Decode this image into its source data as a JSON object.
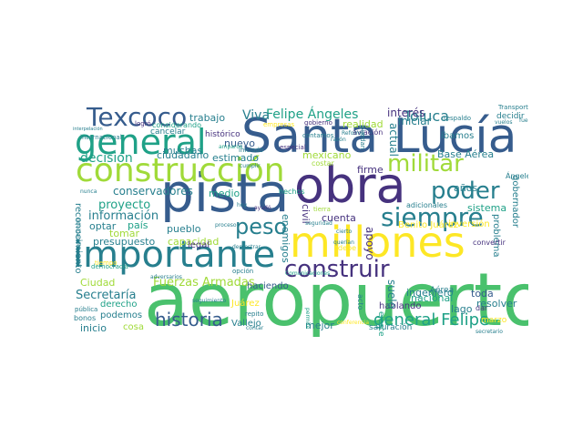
{
  "palette": {
    "dark_purple": "#46327e",
    "blue": "#365c8d",
    "teal_blue": "#277f8e",
    "teal": "#1fa187",
    "green": "#4ac16d",
    "light_green": "#a0da39",
    "yellow": "#fde725"
  },
  "words": {
    "aeropuerto": "aeropuerto",
    "santa_lucia": "Santa Lucía",
    "pista": "pista",
    "obra": "obra",
    "construccion": "construcción",
    "millones": "millones",
    "importante": "importante",
    "general": "general",
    "texcoco": "Texcoco",
    "militar": "militar",
    "poder": "poder",
    "siempre": "siempre",
    "peso": "peso",
    "construir": "construir",
    "historia": "historia",
    "general_felipe": "general Felipe",
    "felipe_angeles": "Felipe Ángeles",
    "viva": "Viva",
    "toluca": "Toluca",
    "interes": "interés",
    "iniciar": "iniciar",
    "realidad": "realidad",
    "actual": "actual",
    "ibamos": "íbamos",
    "base_aerea": "Base Aérea",
    "decision": "decisión",
    "ciudadano": "ciudadano",
    "conservadores": "conservadores",
    "proyecto": "proyecto",
    "informacion": "información",
    "pais": "país",
    "optar": "optar",
    "tomar": "tomar",
    "presupuesto": "presupuesto",
    "capacidad": "capacidad",
    "fuerzas_armadas": "Fuerzas Armadas",
    "secretaria": "Secretaría",
    "ciudad": "Ciudad",
    "derecho": "derecho",
    "podemos": "podemos",
    "inicio": "inicio",
    "cosa": "cosa",
    "vallejo": "Vallejo",
    "mejor": "mejor",
    "haciendo": "haciendo",
    "ingeniero": "ingeniero",
    "nacional": "nacional",
    "toda": "toda",
    "resolver": "resolver",
    "lago": "lago",
    "hablando": "hablando",
    "sistema": "sistema",
    "cuenta": "cuenta",
    "apoyo": "apoyo",
    "legal": "legal",
    "pueblo": "pueblo",
    "medio": "medio",
    "estimado": "estimado",
    "trabajo": "trabajo",
    "muchas": "muchas",
    "historico": "histórico",
    "nuevo": "nuevo",
    "hechos": "hechos",
    "civil": "civil",
    "enemigos": "enemigos",
    "firme": "firme",
    "anos": "años",
    "problema": "problema",
    "gobernador": "gobernador",
    "suelo": "suelo",
    "reconocimiento": "reconocimiento",
    "mexicano": "mexicano",
    "cancelar": "cancelar",
    "considerando": "considerando",
    "empresas": "empresas",
    "gobierno": "gobierno",
    "logro": "logró",
    "decidir": "decidir",
    "respaldo": "respaldo",
    "transportes": "Transportes",
    "aviacion": "aviación",
    "costar": "costar",
    "contamos": "contamos",
    "reforma": "Reforma",
    "especial": "especial",
    "iniciado": "iniciado",
    "amparos": "amparos",
    "adicionales": "adicionales",
    "benito_juarez": "Benito Juárez",
    "inversion": "inversión",
    "convertir": "convertir",
    "aerea": "Aérea",
    "angeles": "Ángeles",
    "marzo": "marzo",
    "dar": "dar",
    "debe": "debe",
    "acto": "acto",
    "juarez": "Juárez",
    "bonos": "bonos",
    "publica": "pública",
    "repito": "repito",
    "contar": "contar",
    "saturacion": "saturación",
    "ejercer": "ejercer",
    "comunicaciones": "Comunicaciones",
    "democracia": "democracia",
    "adversarios": "adversarios",
    "seguimiento": "seguimiento",
    "tiempo": "tiempo",
    "internacional": "internacional",
    "nunca": "nunca",
    "hoy": "hoy",
    "ayudo": "ayudó",
    "cumplir": "cumplir",
    "tierra": "tierra",
    "seguridad": "seguridad",
    "cierto": "cierto",
    "querian": "querían",
    "vuelos": "vuelos",
    "fuerza": "fuerza",
    "razon": "razón",
    "opcion": "opción",
    "demostrar": "demostrar",
    "secretario": "secretario",
    "conferencia": "conferencia",
    "permite": "permite",
    "liquidacion": "liquidación",
    "interpelacion": "interpelación",
    "proceso": "proceso",
    "puedan": "puedan"
  }
}
